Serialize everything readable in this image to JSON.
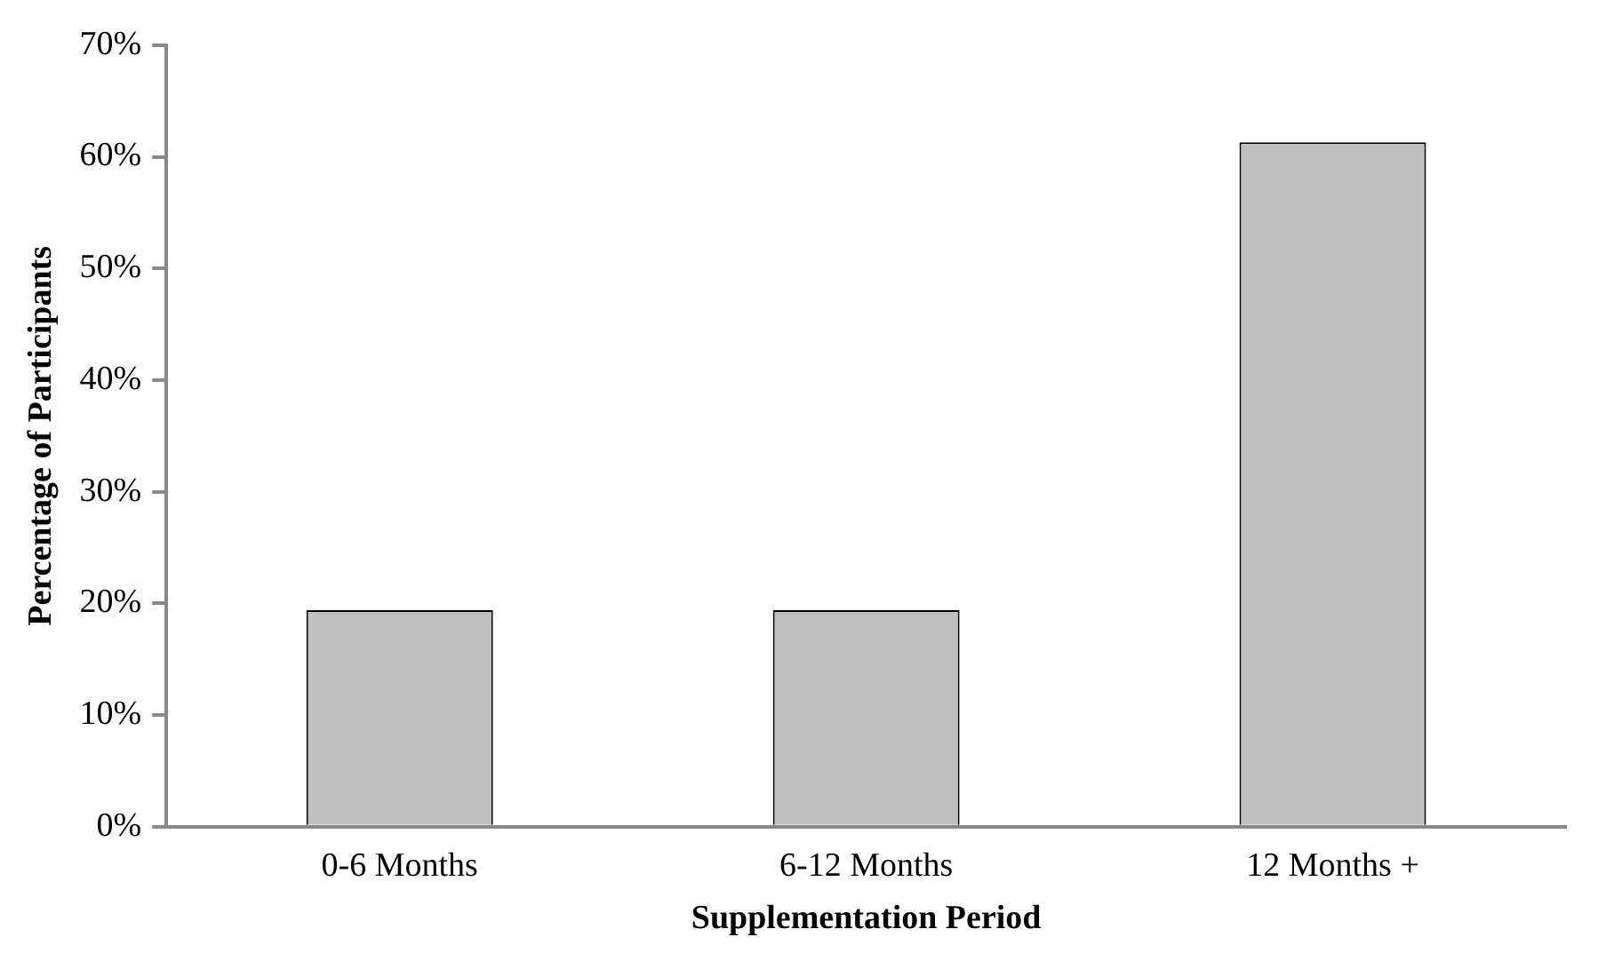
{
  "chart_data": {
    "type": "bar",
    "xlabel": "Supplementation Period",
    "ylabel": "Percentage of Participants",
    "categories": [
      "0-6 Months",
      "6-12 Months",
      "12 Months +"
    ],
    "values": [
      19.4,
      19.4,
      61.3
    ],
    "color": "#bfbfbf",
    "ylim": [
      0,
      70
    ],
    "yticks": [
      {
        "value": 0,
        "label": "0%"
      },
      {
        "value": 10,
        "label": "10%"
      },
      {
        "value": 20,
        "label": "20%"
      },
      {
        "value": 30,
        "label": "30%"
      },
      {
        "value": 40,
        "label": "40%"
      },
      {
        "value": 50,
        "label": "50%"
      },
      {
        "value": 60,
        "label": "60%"
      },
      {
        "value": 70,
        "label": "70%"
      }
    ],
    "grid": false,
    "legend": false
  }
}
